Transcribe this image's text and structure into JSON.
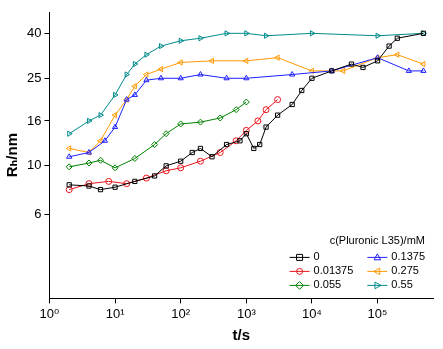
{
  "chart_data": {
    "type": "line",
    "x_label": "t/s",
    "y_label": "Rₕ/nm",
    "log": true,
    "grid": false,
    "xlim": [
      1,
      700000
    ],
    "ylim": [
      2.5,
      50
    ],
    "xticks": [
      {
        "value": 1,
        "label": "10⁰"
      },
      {
        "value": 10,
        "label": "10¹"
      },
      {
        "value": 100,
        "label": "10²"
      },
      {
        "value": 1000,
        "label": "10³"
      },
      {
        "value": 10000,
        "label": "10⁴"
      },
      {
        "value": 100000,
        "label": "10⁵"
      }
    ],
    "yticks": [
      6,
      10,
      16,
      25,
      40
    ],
    "legend": "lower right",
    "legend_title": "c(Pluronic L35)/mM",
    "series": [
      {
        "name": "0",
        "color": "#000000",
        "marker": "square",
        "line_style": "solid",
        "x": [
          2,
          4,
          6,
          10,
          20,
          40,
          60,
          100,
          150,
          200,
          300,
          500,
          800,
          1000,
          1300,
          1600,
          2000,
          3000,
          5000,
          7000,
          10000,
          20000,
          40000,
          60000,
          100000,
          150000,
          200000,
          500000
        ],
        "values": [
          8.2,
          8.1,
          7.8,
          8,
          8.5,
          9,
          10,
          10.5,
          11.5,
          12,
          11,
          12.5,
          13,
          14,
          12,
          12.5,
          15,
          17,
          19,
          22,
          25,
          27,
          29,
          28,
          30,
          35,
          38,
          40
        ]
      },
      {
        "name": "0.01375",
        "color": "#e8161c",
        "marker": "circle",
        "line_style": "solid",
        "x": [
          2,
          4,
          8,
          15,
          30,
          60,
          100,
          200,
          400,
          700,
          1000,
          1500,
          2000,
          3000
        ],
        "values": [
          7.8,
          8.3,
          8.5,
          8.3,
          8.8,
          9.5,
          9.8,
          10.5,
          11.5,
          13,
          14.5,
          16,
          18,
          20
        ]
      },
      {
        "name": "0.055",
        "color": "#008000",
        "marker": "diamond",
        "line_style": "solid",
        "x": [
          2,
          4,
          6,
          10,
          20,
          40,
          60,
          100,
          200,
          400,
          700,
          1000
        ],
        "values": [
          9.9,
          10.3,
          10.6,
          9.8,
          10.8,
          12.5,
          14,
          15.5,
          15.8,
          16.5,
          18,
          19.5
        ]
      },
      {
        "name": "0.1375",
        "color": "#1f1fff",
        "marker": "triangle-up",
        "line_style": "solid",
        "x": [
          2,
          4,
          7,
          10,
          15,
          20,
          30,
          50,
          100,
          200,
          500,
          1000,
          5000,
          20000,
          100000,
          300000,
          500000
        ],
        "values": [
          11,
          11.5,
          13,
          15,
          20,
          21,
          24.5,
          25,
          25,
          26,
          25,
          25,
          26,
          27,
          31,
          27,
          27
        ]
      },
      {
        "name": "0.275",
        "color": "#ff9900",
        "marker": "triangle-left",
        "line_style": "solid",
        "x": [
          2,
          4,
          6,
          10,
          15,
          20,
          30,
          50,
          100,
          300,
          1000,
          3000,
          10000,
          30000,
          100000,
          200000,
          500000
        ],
        "values": [
          12,
          11.5,
          13,
          17,
          20,
          23,
          26,
          27.5,
          29.5,
          30,
          30,
          31,
          27,
          27,
          31,
          32,
          29
        ]
      },
      {
        "name": "0.55",
        "color": "#008b8b",
        "marker": "triangle-right",
        "line_style": "solid",
        "x": [
          2,
          4,
          6,
          10,
          15,
          20,
          30,
          50,
          100,
          200,
          500,
          1000,
          2000,
          10000,
          100000,
          500000
        ],
        "values": [
          14,
          16,
          17,
          21,
          26,
          29,
          32,
          35,
          37,
          38,
          40,
          40,
          39,
          40,
          39,
          40
        ]
      }
    ]
  }
}
